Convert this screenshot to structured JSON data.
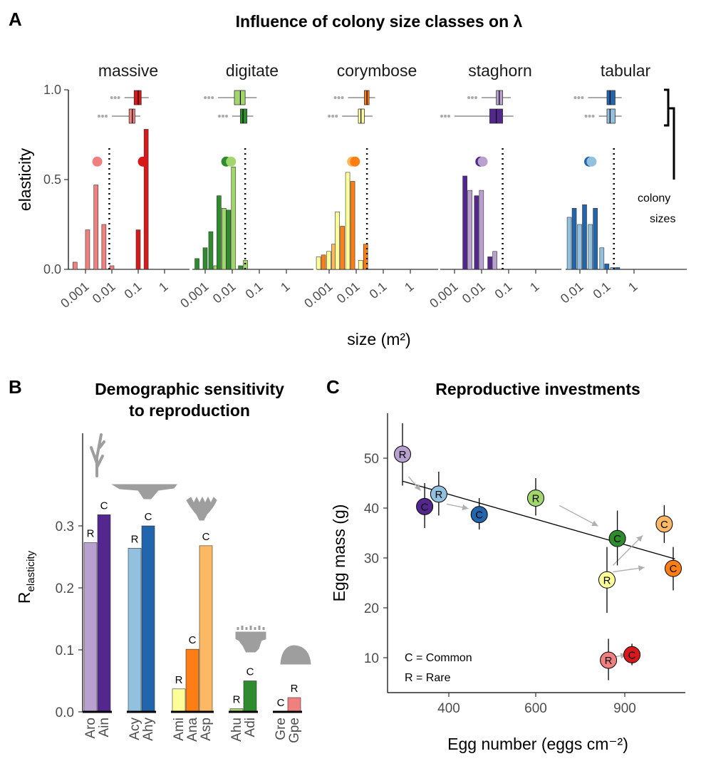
{
  "panels": {
    "a": {
      "letter": "A",
      "title": "Influence of colony size classes on λ",
      "x_label": "size (m²)",
      "y_label": "elasticity",
      "bracket_label_1": "colony",
      "bracket_label_2": "sizes"
    },
    "b": {
      "letter": "B",
      "title_line1": "Demographic sensitivity",
      "title_line2": "to reproduction",
      "y_label": "R",
      "y_label_sub": "elasticity"
    },
    "c": {
      "letter": "C",
      "title": "Reproductive investments",
      "x_label": "Egg number (eggs cm⁻²)",
      "y_label": "Egg mass (g)",
      "legend_common": "C = Common",
      "legend_rare": "R = Rare"
    }
  },
  "colors": {
    "Aro": "#b8a0cf",
    "Ain": "#54278f",
    "Acy": "#92c0df",
    "Ahy": "#2166ac",
    "Ami": "#ffff99",
    "Ana": "#fd7e14",
    "Asp": "#fdb863",
    "Ahu": "#a1d76a",
    "Adi": "#2e8b2e",
    "Gre": "#d7191c",
    "Gpe": "#f08080",
    "silhouette": "#9e9e9e",
    "arrow": "#b0b0b0"
  },
  "chart_data": [
    {
      "id": "A",
      "type": "bar",
      "title": "Influence of colony size classes on λ",
      "xlabel": "size (m²)",
      "ylabel": "elasticity",
      "x_scale": "log",
      "x_ticks": [
        "0.001",
        "0.01",
        "0.1",
        "1"
      ],
      "y_ticks": [
        "0.0",
        "0.5",
        "1.0"
      ],
      "ylim": [
        0,
        1.0
      ],
      "facets": [
        {
          "name": "massive",
          "dotted_line_x": 0.008,
          "points": [
            {
              "x": 0.0028,
              "y": 0.6,
              "species": "Gpe"
            },
            {
              "x": 0.15,
              "y": 0.6,
              "species": "Gre"
            }
          ],
          "bars": [
            {
              "x": 0.0004,
              "values": {
                "Gpe": 0.04
              }
            },
            {
              "x": 0.0012,
              "values": {
                "Gpe": 0.22
              }
            },
            {
              "x": 0.0025,
              "values": {
                "Gpe": 0.47
              }
            },
            {
              "x": 0.005,
              "values": {
                "Gpe": 0.25
              }
            },
            {
              "x": 0.01,
              "values": {
                "Gpe": 0.02
              }
            },
            {
              "x": 0.1,
              "values": {
                "Gre": 0.22
              }
            },
            {
              "x": 0.2,
              "values": {
                "Gre": 0.78
              }
            }
          ],
          "boxes": [
            {
              "species": "Gre",
              "min": 0.03,
              "q1": 0.07,
              "median": 0.1,
              "q3": 0.13,
              "max": 0.25
            },
            {
              "species": "Gpe",
              "min": 0.01,
              "q1": 0.045,
              "median": 0.06,
              "q3": 0.075,
              "max": 0.12
            }
          ]
        },
        {
          "name": "digitate",
          "dotted_line_x": 0.03,
          "points": [
            {
              "x": 0.006,
              "y": 0.6,
              "species": "Adi"
            },
            {
              "x": 0.009,
              "y": 0.6,
              "species": "Ahu"
            }
          ],
          "bars": [
            {
              "x": 0.0005,
              "values": {
                "Adi": 0.06
              }
            },
            {
              "x": 0.001,
              "values": {
                "Adi": 0.12
              }
            },
            {
              "x": 0.002,
              "values": {
                "Adi": 0.21,
                "Ahu": 0.02
              }
            },
            {
              "x": 0.004,
              "values": {
                "Adi": 0.41,
                "Ahu": 0.34
              }
            },
            {
              "x": 0.009,
              "values": {
                "Adi": 0.33,
                "Ahu": 0.57
              }
            },
            {
              "x": 0.025,
              "values": {
                "Adi": 0.02,
                "Ahu": 0.05
              }
            }
          ],
          "boxes": [
            {
              "species": "Ahu",
              "min": 0.003,
              "q1": 0.012,
              "median": 0.02,
              "q3": 0.03,
              "max": 0.08
            },
            {
              "species": "Adi",
              "min": 0.01,
              "q1": 0.02,
              "median": 0.025,
              "q3": 0.035,
              "max": 0.06
            }
          ]
        },
        {
          "name": "corymbose",
          "dotted_line_x": 0.025,
          "points": [
            {
              "x": 0.007,
              "y": 0.6,
              "species": "Asp"
            },
            {
              "x": 0.009,
              "y": 0.6,
              "species": "Ana"
            }
          ],
          "bars": [
            {
              "x": 0.0005,
              "values": {
                "Ami": 0.07,
                "Ana": 0.08
              }
            },
            {
              "x": 0.0012,
              "values": {
                "Ami": 0.1,
                "Asp": 0.14
              }
            },
            {
              "x": 0.0025,
              "values": {
                "Ami": 0.32,
                "Ana": 0.24
              }
            },
            {
              "x": 0.006,
              "values": {
                "Ami": 0.54,
                "Ana": 0.49
              }
            },
            {
              "x": 0.018,
              "values": {
                "Ami": 0.05,
                "Ana": 0.14
              }
            }
          ],
          "boxes": [
            {
              "species": "Ana",
              "min": 0.005,
              "q1": 0.02,
              "median": 0.025,
              "q3": 0.03,
              "max": 0.05
            },
            {
              "species": "Ami",
              "min": 0.003,
              "q1": 0.012,
              "median": 0.015,
              "q3": 0.02,
              "max": 0.04
            }
          ]
        },
        {
          "name": "staghorn",
          "dotted_line_x": 0.06,
          "points": [
            {
              "x": 0.009,
              "y": 0.6,
              "species": "Ain"
            },
            {
              "x": 0.011,
              "y": 0.6,
              "species": "Aro"
            }
          ],
          "bars": [
            {
              "x": 0.003,
              "values": {
                "Ain": 0.52,
                "Aro": 0.44
              }
            },
            {
              "x": 0.008,
              "values": {
                "Ain": 0.41,
                "Aro": 0.44
              }
            },
            {
              "x": 0.025,
              "values": {
                "Ain": 0.07,
                "Aro": 0.1
              }
            }
          ],
          "boxes": [
            {
              "species": "Aro",
              "min": 0.01,
              "q1": 0.035,
              "median": 0.045,
              "q3": 0.06,
              "max": 0.12
            },
            {
              "species": "Ain",
              "min": 0.001,
              "q1": 0.02,
              "median": 0.035,
              "q3": 0.06,
              "max": 0.15
            }
          ]
        },
        {
          "name": "tabular",
          "dotted_line_x": 0.18,
          "points": [
            {
              "x": 0.022,
              "y": 0.6,
              "species": "Ahy"
            },
            {
              "x": 0.027,
              "y": 0.6,
              "species": "Acy"
            }
          ],
          "bars": [
            {
              "x": 0.005,
              "values": {
                "Acy": 0.29,
                "Ahy": 0.34
              }
            },
            {
              "x": 0.012,
              "values": {
                "Acy": 0.25,
                "Ahy": 0.36
              }
            },
            {
              "x": 0.03,
              "values": {
                "Acy": 0.25,
                "Ahy": 0.34
              }
            },
            {
              "x": 0.08,
              "values": {
                "Acy": 0.12,
                "Ahy": 0.03
              }
            },
            {
              "x": 0.2,
              "values": {
                "Acy": 0.01,
                "Ahy": 0.01
              }
            }
          ],
          "boxes": [
            {
              "species": "Ahy",
              "min": 0.02,
              "q1": 0.1,
              "median": 0.13,
              "q3": 0.2,
              "max": 0.35
            },
            {
              "species": "Acy",
              "min": 0.05,
              "q1": 0.1,
              "median": 0.13,
              "q3": 0.2,
              "max": 0.35
            }
          ]
        }
      ]
    },
    {
      "id": "B",
      "type": "bar",
      "title": "Demographic sensitivity to reproduction",
      "ylabel": "R elasticity",
      "ylim": [
        0,
        0.35
      ],
      "y_ticks": [
        "0.0",
        "0.1",
        "0.2",
        "0.3"
      ],
      "groups": [
        {
          "bars": [
            {
              "label": "Aro",
              "status": "R",
              "value": 0.273
            },
            {
              "label": "Ain",
              "status": "C",
              "value": 0.318
            }
          ]
        },
        {
          "bars": [
            {
              "label": "Acy",
              "status": "R",
              "value": 0.264
            },
            {
              "label": "Ahy",
              "status": "C",
              "value": 0.3
            }
          ]
        },
        {
          "bars": [
            {
              "label": "Ami",
              "status": "R",
              "value": 0.037
            },
            {
              "label": "Ana",
              "status": "C",
              "value": 0.101
            },
            {
              "label": "Asp",
              "status": "C",
              "value": 0.268
            }
          ]
        },
        {
          "bars": [
            {
              "label": "Ahu",
              "status": "R",
              "value": 0.005
            },
            {
              "label": "Adi",
              "status": "C",
              "value": 0.05
            }
          ]
        },
        {
          "bars": [
            {
              "label": "Gre",
              "status": "C",
              "value": 0.0
            },
            {
              "label": "Gpe",
              "status": "R",
              "value": 0.023
            }
          ]
        }
      ]
    },
    {
      "id": "C",
      "type": "scatter",
      "title": "Reproductive investments",
      "xlabel": "Egg number (eggs cm⁻²)",
      "ylabel": "Egg mass (g)",
      "xlim": [
        180,
        1050
      ],
      "ylim": [
        3,
        59
      ],
      "x_ticks": [
        400,
        600,
        900
      ],
      "y_ticks": [
        10,
        20,
        30,
        40,
        50
      ],
      "fit_line": [
        [
          285,
          45.4
        ],
        [
          1040,
          29.8
        ]
      ],
      "points": [
        {
          "label": "R",
          "species": "Aro",
          "x": 285,
          "y": 50.8,
          "yerr_low": 44.5,
          "yerr_high": 57
        },
        {
          "label": "C",
          "species": "Ain",
          "x": 340,
          "y": 40.3,
          "yerr_low": 36,
          "yerr_high": 45
        },
        {
          "label": "R",
          "species": "Acy",
          "x": 375,
          "y": 42.8,
          "yerr_low": 38.5,
          "yerr_high": 47.3
        },
        {
          "label": "C",
          "species": "Ahy",
          "x": 470,
          "y": 38.7,
          "yerr_low": 35.7,
          "yerr_high": 42
        },
        {
          "label": "R",
          "species": "Ahu",
          "x": 600,
          "y": 42,
          "yerr_low": 38.5,
          "yerr_high": 46
        },
        {
          "label": "C",
          "species": "Adi",
          "x": 875,
          "y": 33.9,
          "yerr_low": 28.5,
          "yerr_high": 39.5
        },
        {
          "label": "C",
          "species": "Asp",
          "x": 1010,
          "y": 36.8,
          "yerr_low": 33,
          "yerr_high": 40.6
        },
        {
          "label": "C",
          "species": "Ana",
          "x": 1035,
          "y": 27.9,
          "yerr_low": 23.5,
          "yerr_high": 32.2
        },
        {
          "label": "R",
          "species": "Ami",
          "x": 840,
          "y": 25.6,
          "yerr_low": 19,
          "yerr_high": 32.2
        },
        {
          "label": "R",
          "species": "Gpe",
          "x": 845,
          "y": 9.5,
          "yerr_low": 5.5,
          "yerr_high": 13.8
        },
        {
          "label": "C",
          "species": "Gre",
          "x": 920,
          "y": 10.6,
          "yerr_low": 8.5,
          "yerr_high": 12.8
        }
      ],
      "arrows": [
        {
          "from": [
            300,
            46.3
          ],
          "to": [
            330,
            43.5
          ]
        },
        {
          "from": [
            395,
            40.8
          ],
          "to": [
            445,
            39.9
          ]
        },
        {
          "from": [
            680,
            40.5
          ],
          "to": [
            810,
            36.4
          ]
        },
        {
          "from": [
            860,
            28.5
          ],
          "to": [
            950,
            34.5
          ]
        },
        {
          "from": [
            860,
            27.2
          ],
          "to": [
            955,
            28.1
          ]
        },
        {
          "from": [
            870,
            10.2
          ],
          "to": [
            905,
            10.6
          ]
        }
      ]
    }
  ]
}
